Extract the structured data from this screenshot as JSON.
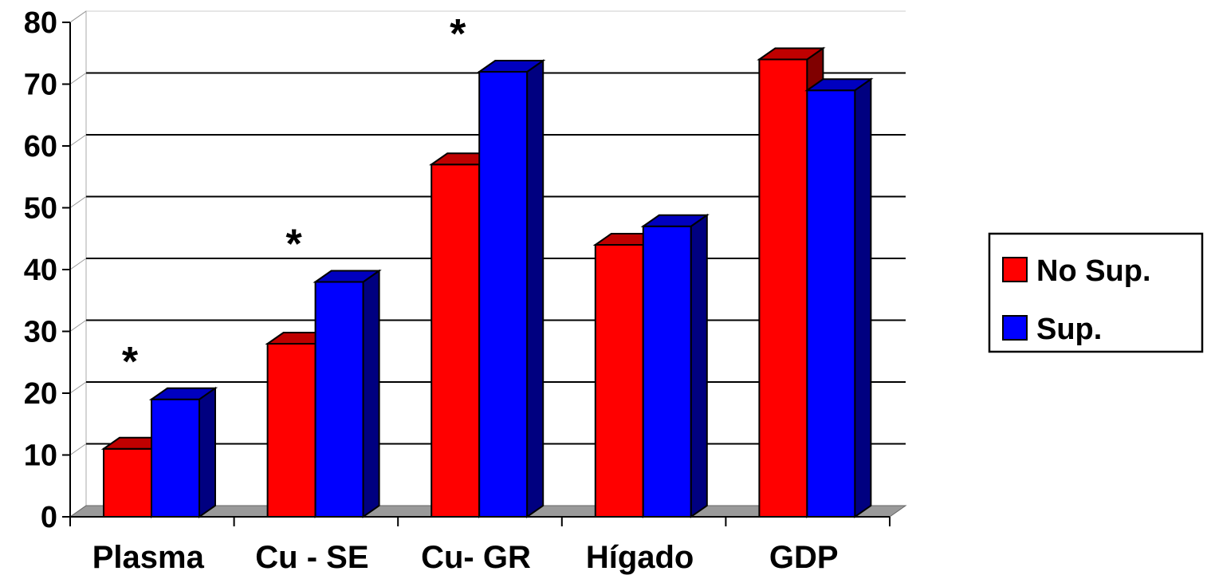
{
  "chart_data": {
    "type": "bar",
    "categories": [
      "Plasma",
      "Cu - SE",
      "Cu- GR",
      "Hígado",
      "GDP"
    ],
    "series": [
      {
        "name": "No Sup.",
        "values": [
          11,
          28,
          57,
          44,
          74
        ],
        "color": "#ff0000"
      },
      {
        "name": "Sup.",
        "values": [
          19,
          38,
          72,
          47,
          69
        ],
        "color": "#0000ff"
      }
    ],
    "ylim": [
      0,
      80
    ],
    "yticks": [
      0,
      10,
      20,
      30,
      40,
      50,
      60,
      70,
      80
    ],
    "annotations": [
      {
        "category": "Plasma",
        "text": "*"
      },
      {
        "category": "Cu - SE",
        "text": "*"
      },
      {
        "category": "Cu- GR",
        "text": "*"
      }
    ],
    "grid": true,
    "legend": "right"
  }
}
